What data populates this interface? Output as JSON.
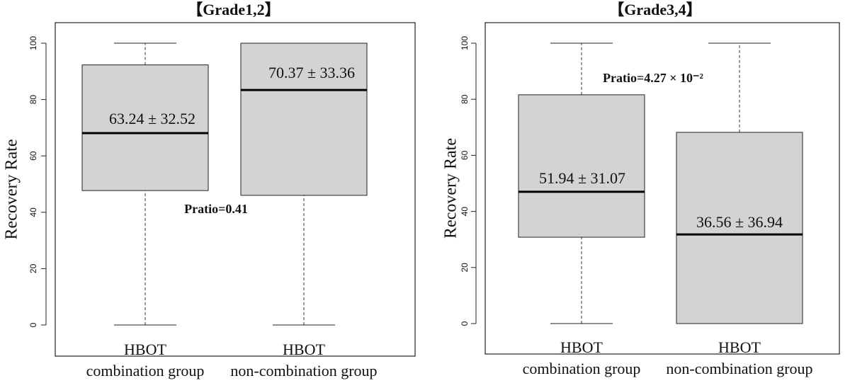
{
  "chart_data": [
    {
      "type": "box",
      "title": "【Grade1,2】",
      "ylabel": "Recovery Rate",
      "categories": [
        [
          "HBOT",
          "combination group"
        ],
        [
          "HBOT",
          "non-combination group"
        ]
      ],
      "boxes": [
        {
          "whislo": 0,
          "q1": 47.7,
          "med": 68.1,
          "q3": 92.3,
          "whishi": 100
        },
        {
          "whislo": 0,
          "q1": 46,
          "med": 83.4,
          "q3": 100,
          "whishi": 100
        }
      ],
      "color": "#d3d3d3",
      "ylim": [
        0,
        100
      ],
      "yticks": [
        0,
        20,
        40,
        60,
        80,
        100
      ],
      "annotations": [
        {
          "text": "63.24 ± 32.52",
          "bold": false
        },
        {
          "text": "70.37 ± 33.36",
          "bold": false
        },
        {
          "text": "Pratio=0.41",
          "bold": true
        }
      ]
    },
    {
      "type": "box",
      "title": "【Grade3,4】",
      "ylabel": "Recovery Rate",
      "categories": [
        [
          "HBOT",
          "combination group"
        ],
        [
          "HBOT",
          "non-combination group"
        ]
      ],
      "boxes": [
        {
          "whislo": 0,
          "q1": 30.8,
          "med": 47,
          "q3": 81.6,
          "whishi": 100
        },
        {
          "whislo": 0,
          "q1": 0,
          "med": 31.8,
          "q3": 68.2,
          "whishi": 100
        }
      ],
      "color": "#d3d3d3",
      "ylim": [
        0,
        100
      ],
      "yticks": [
        0,
        20,
        40,
        60,
        80,
        100
      ],
      "annotations": [
        {
          "text": "51.94 ± 31.07",
          "bold": false
        },
        {
          "text": "36.56 ± 36.94",
          "bold": false
        },
        {
          "text": "Pratio=4.27 × 10⁻²",
          "bold": true
        }
      ]
    }
  ]
}
